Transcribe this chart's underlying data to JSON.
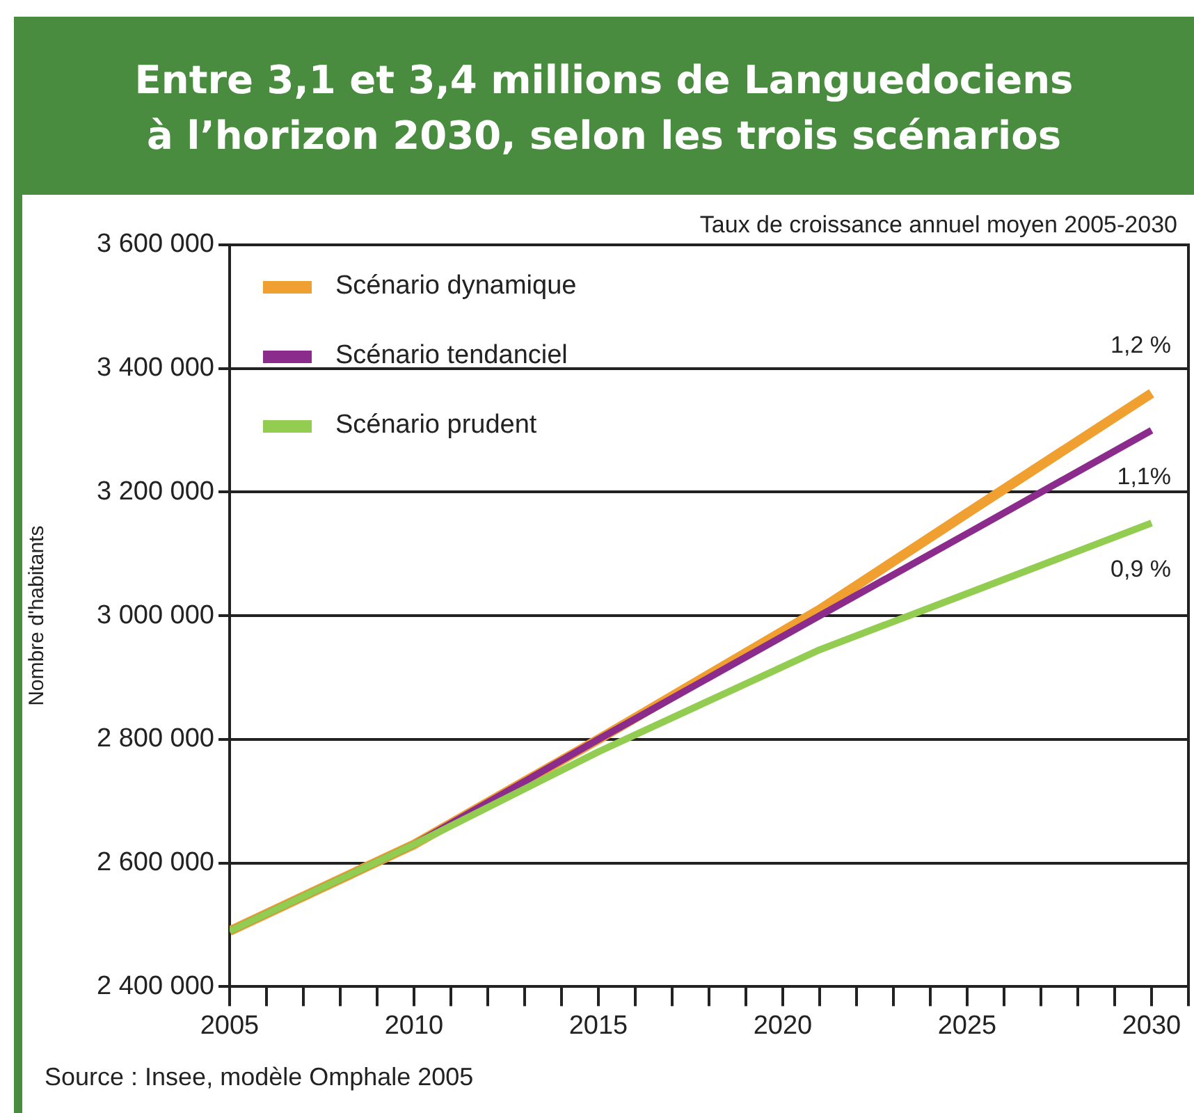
{
  "chart_data": {
    "type": "line",
    "title": "Entre 3,1 et 3,4 millions de Languedociens\nà l’horizon 2030, selon les trois scénarios",
    "subtitle": "Taux de croissance annuel moyen 2005-2030",
    "ylabel": "Nombre d'habitants",
    "x": [
      2005,
      2010,
      2015,
      2021,
      2025,
      2030
    ],
    "series": [
      {
        "name": "Scénario dynamique",
        "color": "#f0a030",
        "values": [
          2490000,
          2630000,
          2800000,
          3010000,
          3166000,
          3360000
        ]
      },
      {
        "name": "Scénario tendanciel",
        "color": "#8b2b8b",
        "values": [
          2490000,
          2630000,
          2800000,
          3000000,
          3133000,
          3300000
        ]
      },
      {
        "name": "Scénario prudent",
        "color": "#92cc50",
        "values": [
          2490000,
          2630000,
          2780000,
          2945000,
          3036000,
          3150000
        ]
      }
    ],
    "xlim": [
      2005,
      2031
    ],
    "xticks": [
      2005,
      {
        "value": 2006,
        "label": null
      },
      {
        "value": 2007,
        "label": null
      },
      {
        "value": 2008,
        "label": null
      },
      {
        "value": 2009,
        "label": null
      },
      2010,
      {
        "value": 2011,
        "label": null
      },
      {
        "value": 2012,
        "label": null
      },
      {
        "value": 2013,
        "label": null
      },
      {
        "value": 2014,
        "label": null
      },
      2015,
      {
        "value": 2016,
        "label": null
      },
      {
        "value": 2017,
        "label": null
      },
      {
        "value": 2018,
        "label": null
      },
      {
        "value": 2019,
        "label": null
      },
      2020,
      {
        "value": 2021,
        "label": null
      },
      {
        "value": 2022,
        "label": null
      },
      {
        "value": 2023,
        "label": null
      },
      {
        "value": 2024,
        "label": null
      },
      2025,
      {
        "value": 2026,
        "label": null
      },
      {
        "value": 2027,
        "label": null
      },
      {
        "value": 2028,
        "label": null
      },
      {
        "value": 2029,
        "label": null
      },
      2030,
      {
        "value": 2031,
        "label": null
      }
    ],
    "ylim": [
      2400000,
      3600000
    ],
    "yticks": [
      {
        "value": 2400000,
        "label": "2 400 000"
      },
      {
        "value": 2600000,
        "label": "2 600 000"
      },
      {
        "value": 2800000,
        "label": "2 800 000"
      },
      {
        "value": 3000000,
        "label": "3 000 000"
      },
      {
        "value": 3200000,
        "label": "3 200 000"
      },
      {
        "value": 3400000,
        "label": "3 400 000"
      },
      {
        "value": 3600000,
        "label": "3 600 000"
      }
    ],
    "grid": "y",
    "legend": "top left",
    "marker": "none",
    "line_style": "solid",
    "annotations": [
      "1,2 %",
      "1,1%",
      "0,9 %",
      "Source : Insee, modèle Omphale 2005"
    ]
  }
}
